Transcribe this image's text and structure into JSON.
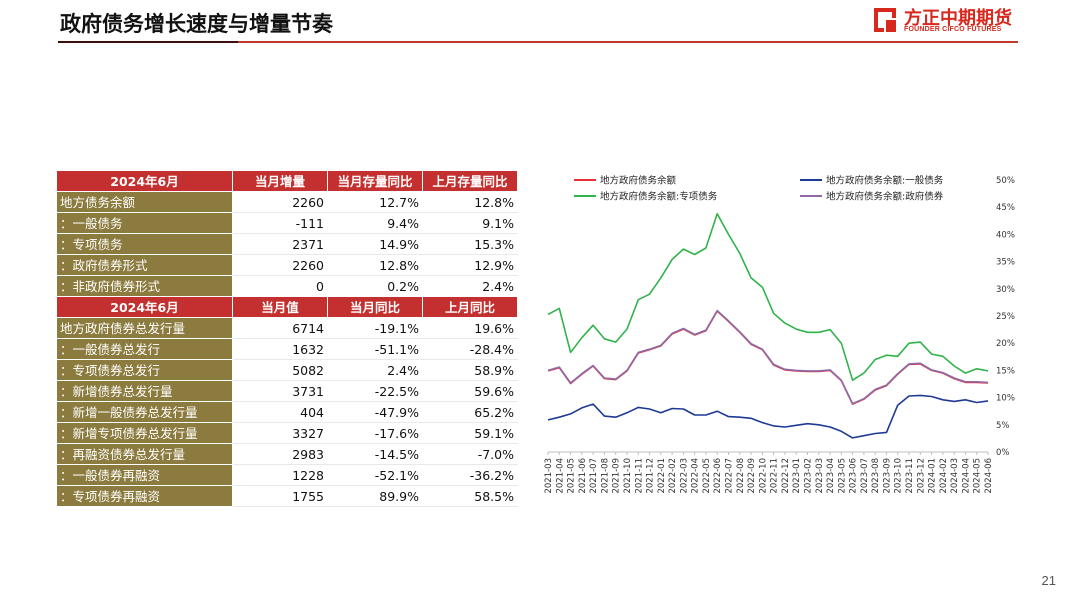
{
  "header": {
    "title": "政府债务增长速度与增量节奏",
    "logo_cn": "方正中期期货",
    "logo_en": "FOUNDER CIFCO FUTURES",
    "brand_color": "#d7281d"
  },
  "table1": {
    "headers": [
      "2024年6月",
      "当月增量",
      "当月存量同比",
      "上月存量同比"
    ],
    "rows": [
      [
        "地方债务余额",
        "2260",
        "12.7%",
        "12.8%"
      ],
      [
        "：一般债务",
        "-111",
        "9.4%",
        "9.1%"
      ],
      [
        "：专项债务",
        "2371",
        "14.9%",
        "15.3%"
      ],
      [
        "：政府债券形式",
        "2260",
        "12.8%",
        "12.9%"
      ],
      [
        "：非政府债券形式",
        "0",
        "0.2%",
        "2.4%"
      ]
    ]
  },
  "table2": {
    "headers": [
      "2024年6月",
      "当月值",
      "当月同比",
      "上月同比"
    ],
    "rows": [
      [
        "地方政府债券总发行量",
        "6714",
        "-19.1%",
        "19.6%"
      ],
      [
        "：一般债券总发行",
        "1632",
        "-51.1%",
        "-28.4%"
      ],
      [
        "：专项债券总发行",
        "5082",
        "2.4%",
        "58.9%"
      ],
      [
        "：新增债券总发行量",
        "3731",
        "-22.5%",
        "59.6%"
      ],
      [
        "：新增一般债券总发行量",
        "404",
        "-47.9%",
        "65.2%"
      ],
      [
        "：新增专项债券总发行量",
        "3327",
        "-17.6%",
        "59.1%"
      ],
      [
        "：再融资债券总发行量",
        "2983",
        "-14.5%",
        "-7.0%"
      ],
      [
        "：一般债券再融资",
        "1228",
        "-52.1%",
        "-36.2%"
      ],
      [
        "：专项债券再融资",
        "1755",
        "89.9%",
        "58.5%"
      ]
    ]
  },
  "chart_data": {
    "type": "line",
    "x": [
      "2021-03",
      "2021-04",
      "2021-05",
      "2021-06",
      "2021-07",
      "2021-08",
      "2021-09",
      "2021-10",
      "2021-11",
      "2021-12",
      "2022-01",
      "2022-02",
      "2022-03",
      "2022-04",
      "2022-05",
      "2022-06",
      "2022-07",
      "2022-08",
      "2022-09",
      "2022-10",
      "2022-11",
      "2022-12",
      "2023-01",
      "2023-02",
      "2023-03",
      "2023-04",
      "2023-05",
      "2023-06",
      "2023-07",
      "2023-08",
      "2023-09",
      "2023-10",
      "2023-11",
      "2023-12",
      "2024-01",
      "2024-02",
      "2024-03",
      "2024-04",
      "2024-05",
      "2024-06"
    ],
    "ylim": [
      0,
      50
    ],
    "yticks": [
      "0%",
      "5%",
      "10%",
      "15%",
      "20%",
      "25%",
      "30%",
      "35%",
      "40%",
      "45%",
      "50%"
    ],
    "legend_placement": "top",
    "series": [
      {
        "name": "地方政府债务余额",
        "color": "#e8303a",
        "width": 1.6,
        "values": [
          14.9,
          15.5,
          12.6,
          14.3,
          15.8,
          13.5,
          13.3,
          14.9,
          18.2,
          18.8,
          19.5,
          21.7,
          22.6,
          21.5,
          22.3,
          25.9,
          24.0,
          22.0,
          19.8,
          18.8,
          16.0,
          15.1,
          14.9,
          14.8,
          14.8,
          15.0,
          13.1,
          8.8,
          9.7,
          11.4,
          12.2,
          14.3,
          16.1,
          16.2,
          15.0,
          14.5,
          13.5,
          12.8,
          12.8,
          12.7
        ]
      },
      {
        "name": "地方政府债务余额:一般债务",
        "color": "#1f3a93",
        "width": 1.6,
        "values": [
          5.9,
          6.4,
          7.0,
          8.1,
          8.8,
          6.6,
          6.4,
          7.2,
          8.2,
          7.9,
          7.2,
          8.0,
          7.9,
          6.8,
          6.8,
          7.5,
          6.5,
          6.4,
          6.2,
          5.4,
          4.8,
          4.6,
          4.9,
          5.2,
          5.0,
          4.6,
          3.8,
          2.6,
          3.0,
          3.4,
          3.6,
          8.6,
          10.3,
          10.4,
          10.2,
          9.6,
          9.3,
          9.6,
          9.1,
          9.4
        ]
      },
      {
        "name": "地方政府债务余额:专项债务",
        "color": "#2fb34a",
        "width": 1.6,
        "values": [
          25.3,
          26.4,
          18.3,
          21.0,
          23.3,
          20.8,
          20.2,
          22.6,
          28.0,
          29.0,
          32.0,
          35.4,
          37.3,
          36.3,
          37.5,
          43.8,
          40.0,
          36.5,
          32.0,
          30.3,
          25.5,
          23.7,
          22.6,
          22.0,
          22.0,
          22.5,
          20.0,
          13.2,
          14.5,
          17.0,
          17.8,
          17.6,
          20.0,
          20.2,
          18.0,
          17.6,
          15.8,
          14.5,
          15.3,
          14.9
        ]
      },
      {
        "name": "地方政府债务余额:政府债券",
        "color": "#8e6aa8",
        "width": 1.6,
        "values": [
          15.0,
          15.6,
          12.7,
          14.4,
          15.9,
          13.6,
          13.4,
          15.0,
          18.3,
          18.9,
          19.6,
          21.8,
          22.7,
          21.6,
          22.4,
          26.0,
          24.1,
          22.1,
          19.9,
          18.9,
          16.1,
          15.2,
          15.0,
          14.9,
          14.9,
          15.1,
          13.2,
          8.9,
          9.8,
          11.5,
          12.3,
          14.4,
          16.2,
          16.3,
          15.1,
          14.6,
          13.6,
          12.9,
          12.9,
          12.8
        ]
      }
    ]
  },
  "page_number": "21"
}
